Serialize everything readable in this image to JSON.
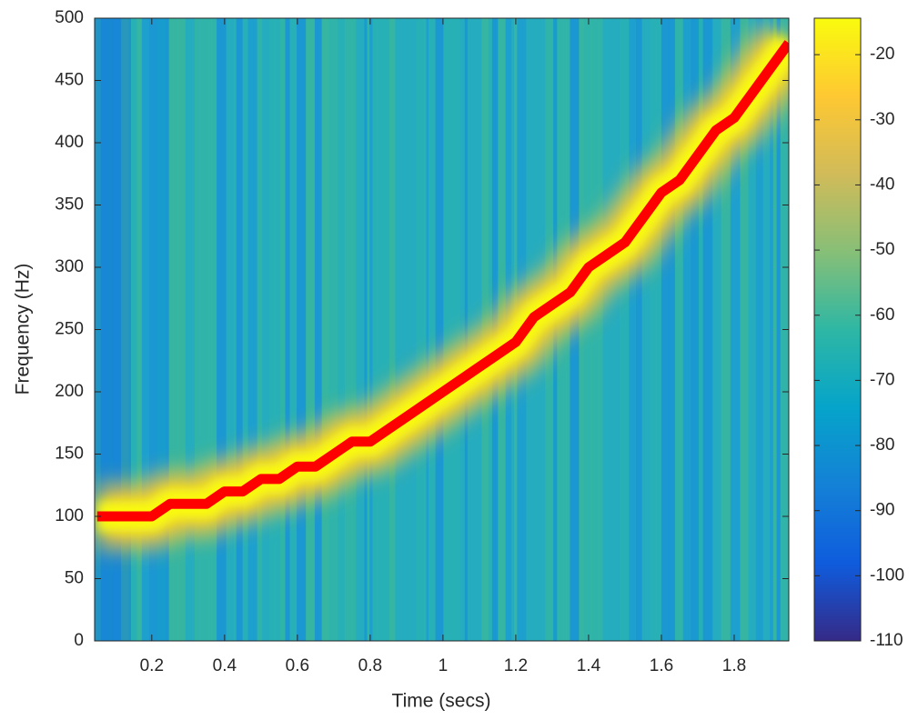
{
  "chart_data": {
    "type": "spectrogram",
    "xlabel": "Time (secs)",
    "ylabel": "Frequency (Hz)",
    "xlim": [
      0.043,
      1.95
    ],
    "ylim": [
      0,
      500
    ],
    "xticks": [
      0.2,
      0.4,
      0.6,
      0.8,
      1,
      1.2,
      1.4,
      1.6,
      1.8
    ],
    "yticks": [
      0,
      50,
      100,
      150,
      200,
      250,
      300,
      350,
      400,
      450,
      500
    ],
    "series": [
      {
        "color": "#ff0000",
        "x": [
          0.05,
          0.1,
          0.15,
          0.2,
          0.25,
          0.3,
          0.35,
          0.4,
          0.45,
          0.5,
          0.55,
          0.6,
          0.65,
          0.7,
          0.75,
          0.8,
          0.85,
          0.9,
          0.95,
          1.0,
          1.05,
          1.1,
          1.15,
          1.2,
          1.25,
          1.3,
          1.35,
          1.4,
          1.45,
          1.5,
          1.55,
          1.6,
          1.65,
          1.7,
          1.75,
          1.8,
          1.85,
          1.9,
          1.95
        ],
        "values": [
          100,
          100,
          100,
          100,
          110,
          110,
          110,
          120,
          120,
          130,
          130,
          140,
          140,
          150,
          160,
          160,
          170,
          180,
          190,
          200,
          210,
          220,
          230,
          240,
          260,
          270,
          280,
          300,
          310,
          320,
          340,
          360,
          370,
          390,
          410,
          420,
          440,
          460,
          480
        ]
      }
    ],
    "colorbar": {
      "clim": [
        -110,
        -14.4
      ],
      "ticks": [
        -110,
        -100,
        -90,
        -80,
        -70,
        -60,
        -50,
        -40,
        -30,
        -20
      ],
      "colormap": [
        "#352a87",
        "#0f5cdd",
        "#1481d6",
        "#06a4ca",
        "#2eb7a4",
        "#87bf77",
        "#d1bb59",
        "#fec832",
        "#f9fb0e"
      ]
    }
  }
}
